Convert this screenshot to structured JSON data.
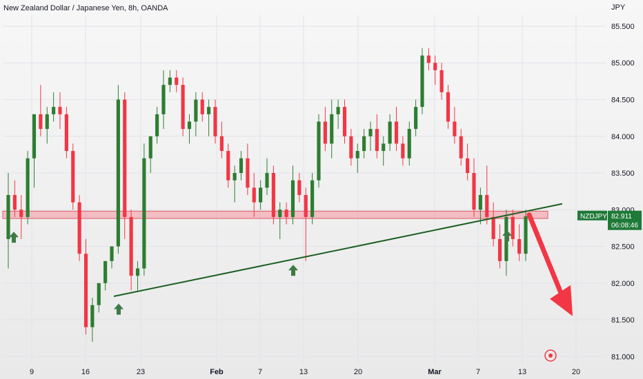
{
  "title": "New Zealand Dollar / Japanese Yen, 8h, OANDA",
  "chart_data": {
    "type": "candlestick",
    "currency_label": "JPY",
    "ylim": [
      80.9,
      85.65
    ],
    "y_ticks": [
      "85.500",
      "85.000",
      "84.500",
      "84.000",
      "83.500",
      "83.000",
      "82.500",
      "82.000",
      "81.500",
      "81.000"
    ],
    "x_ticks": [
      "9",
      "16",
      "23",
      "Feb",
      "7",
      "13",
      "20",
      "Mar",
      "7",
      "13",
      "20"
    ],
    "symbol": "NZDJPY",
    "last_price": "82.911",
    "countdown": "06:08:46",
    "colors": {
      "up": "#2e7d32",
      "down": "#f23645",
      "zone": "#f2a2aa",
      "trend": "#1b5e20",
      "arrow": "#f23645",
      "support_arrow": "#3d7a45",
      "tag": "#1f7a38"
    },
    "support_zone": {
      "from": 82.88,
      "to": 82.98
    },
    "trendline": {
      "start": 81.82,
      "end": 83.08
    },
    "support_markers": [
      82.7,
      82.25,
      81.72,
      82.72
    ],
    "candles_ohlc": [
      [
        82.6,
        83.5,
        82.2,
        83.2
      ],
      [
        83.2,
        83.4,
        82.9,
        83.0
      ],
      [
        83.0,
        83.2,
        82.6,
        82.9
      ],
      [
        82.9,
        83.8,
        82.8,
        83.7
      ],
      [
        83.7,
        84.3,
        83.3,
        84.3
      ],
      [
        84.3,
        84.7,
        84.0,
        84.1
      ],
      [
        84.1,
        84.4,
        83.9,
        84.3
      ],
      [
        84.3,
        84.6,
        84.2,
        84.4
      ],
      [
        84.4,
        84.6,
        84.1,
        84.3
      ],
      [
        84.3,
        84.4,
        83.7,
        83.8
      ],
      [
        83.8,
        83.9,
        83.0,
        83.1
      ],
      [
        83.1,
        83.2,
        82.3,
        82.4
      ],
      [
        82.4,
        82.6,
        81.3,
        81.4
      ],
      [
        81.4,
        81.8,
        81.2,
        81.7
      ],
      [
        81.7,
        82.0,
        81.6,
        82.0
      ],
      [
        82.0,
        82.3,
        81.9,
        82.3
      ],
      [
        82.3,
        82.5,
        82.2,
        82.5
      ],
      [
        82.5,
        84.7,
        82.4,
        84.5
      ],
      [
        84.5,
        84.6,
        82.6,
        82.9
      ],
      [
        82.9,
        83.0,
        81.9,
        82.1
      ],
      [
        82.1,
        82.3,
        81.9,
        82.2
      ],
      [
        82.2,
        83.9,
        82.1,
        83.7
      ],
      [
        83.7,
        84.0,
        83.5,
        84.0
      ],
      [
        84.0,
        84.4,
        83.9,
        84.3
      ],
      [
        84.3,
        84.9,
        84.1,
        84.7
      ],
      [
        84.7,
        84.9,
        84.6,
        84.8
      ],
      [
        84.8,
        84.9,
        84.6,
        84.7
      ],
      [
        84.7,
        84.8,
        84.0,
        84.1
      ],
      [
        84.1,
        84.3,
        83.9,
        84.2
      ],
      [
        84.2,
        84.6,
        84.0,
        84.5
      ],
      [
        84.5,
        84.6,
        84.2,
        84.3
      ],
      [
        84.3,
        84.5,
        84.0,
        84.4
      ],
      [
        84.4,
        84.5,
        83.9,
        84.0
      ],
      [
        84.0,
        84.2,
        83.7,
        83.8
      ],
      [
        83.8,
        83.9,
        83.3,
        83.4
      ],
      [
        83.4,
        83.6,
        83.1,
        83.5
      ],
      [
        83.5,
        83.8,
        83.4,
        83.7
      ],
      [
        83.7,
        83.9,
        83.2,
        83.3
      ],
      [
        83.3,
        83.5,
        82.9,
        83.1
      ],
      [
        83.1,
        83.4,
        83.0,
        83.3
      ],
      [
        83.3,
        83.7,
        83.2,
        83.5
      ],
      [
        83.5,
        83.6,
        82.8,
        82.9
      ],
      [
        82.9,
        83.1,
        82.6,
        83.0
      ],
      [
        83.0,
        83.1,
        82.8,
        82.9
      ],
      [
        82.9,
        83.6,
        82.8,
        83.4
      ],
      [
        83.4,
        83.5,
        83.1,
        83.2
      ],
      [
        83.2,
        83.3,
        82.3,
        82.9
      ],
      [
        82.9,
        83.5,
        82.8,
        83.4
      ],
      [
        83.4,
        84.3,
        83.3,
        84.2
      ],
      [
        84.2,
        84.4,
        83.8,
        83.9
      ],
      [
        83.9,
        84.5,
        83.7,
        84.3
      ],
      [
        84.3,
        84.5,
        84.1,
        84.4
      ],
      [
        84.4,
        84.5,
        83.9,
        84.0
      ],
      [
        84.0,
        84.1,
        83.6,
        83.7
      ],
      [
        83.7,
        83.9,
        83.5,
        83.8
      ],
      [
        83.8,
        84.1,
        83.7,
        84.0
      ],
      [
        84.0,
        84.2,
        83.8,
        84.1
      ],
      [
        84.1,
        84.3,
        83.7,
        83.8
      ],
      [
        83.8,
        84.0,
        83.6,
        83.9
      ],
      [
        83.9,
        84.3,
        83.8,
        84.2
      ],
      [
        84.2,
        84.4,
        83.8,
        83.9
      ],
      [
        83.9,
        84.0,
        83.6,
        83.7
      ],
      [
        83.7,
        84.2,
        83.6,
        84.1
      ],
      [
        84.1,
        84.5,
        84.0,
        84.4
      ],
      [
        84.4,
        85.2,
        84.3,
        85.1
      ],
      [
        85.1,
        85.2,
        84.9,
        85.0
      ],
      [
        85.0,
        85.1,
        84.7,
        84.9
      ],
      [
        84.9,
        85.0,
        84.5,
        84.6
      ],
      [
        84.6,
        84.7,
        84.1,
        84.2
      ],
      [
        84.2,
        84.4,
        83.9,
        84.0
      ],
      [
        84.0,
        84.1,
        83.6,
        83.7
      ],
      [
        83.7,
        83.9,
        83.4,
        83.5
      ],
      [
        83.5,
        83.7,
        82.9,
        83.0
      ],
      [
        83.0,
        83.3,
        82.8,
        83.2
      ],
      [
        83.2,
        83.6,
        82.8,
        82.9
      ],
      [
        82.9,
        83.1,
        82.5,
        82.6
      ],
      [
        82.6,
        82.8,
        82.2,
        82.3
      ],
      [
        82.3,
        83.0,
        82.1,
        82.9
      ],
      [
        82.9,
        83.0,
        82.5,
        82.6
      ],
      [
        82.6,
        82.8,
        82.3,
        82.4
      ],
      [
        82.4,
        83.0,
        82.3,
        82.91
      ]
    ]
  },
  "ui": {
    "target_icon": "target-icon"
  }
}
